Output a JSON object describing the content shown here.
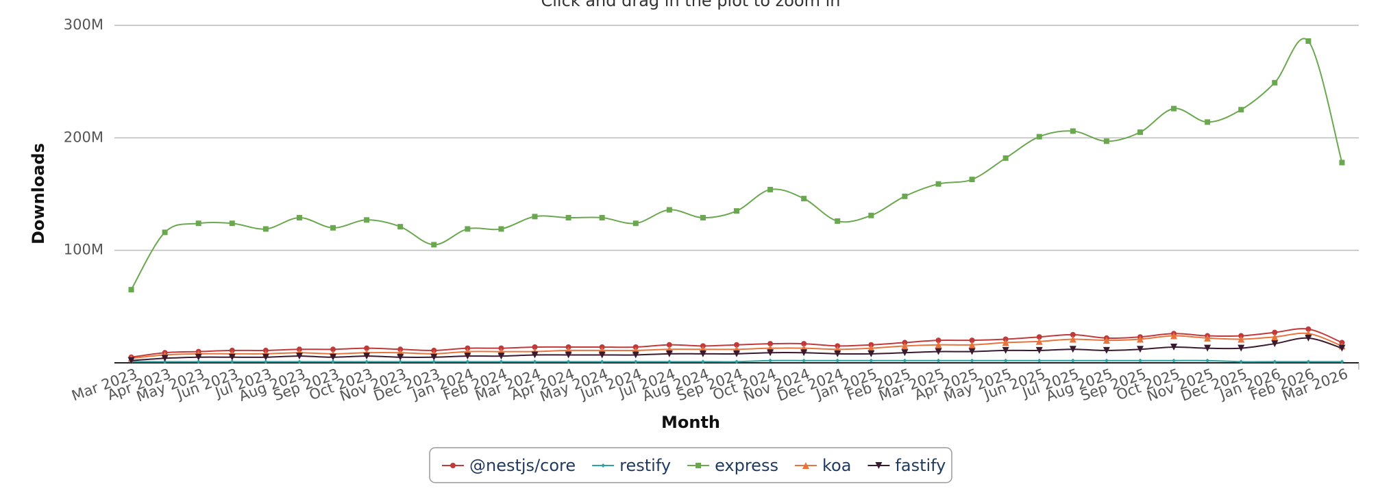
{
  "chart_data": {
    "type": "line",
    "subtitle": "Click and drag in the plot to zoom in",
    "x_label": "Month",
    "y_label": "Downloads",
    "categories": [
      "Mar 2023",
      "Apr 2023",
      "May 2023",
      "Jun 2023",
      "Jul 2023",
      "Aug 2023",
      "Sep 2023",
      "Oct 2023",
      "Nov 2023",
      "Dec 2023",
      "Jan 2024",
      "Feb 2024",
      "Mar 2024",
      "Apr 2024",
      "May 2024",
      "Jun 2024",
      "Jul 2024",
      "Aug 2024",
      "Sep 2024",
      "Oct 2024",
      "Nov 2024",
      "Dec 2024",
      "Jan 2025",
      "Feb 2025",
      "Mar 2025",
      "Apr 2025",
      "May 2025",
      "Jun 2025",
      "Jul 2025",
      "Aug 2025",
      "Sep 2025",
      "Oct 2025",
      "Nov 2025",
      "Dec 2025",
      "Jan 2026",
      "Feb 2026",
      "Mar 2026"
    ],
    "ylim": [
      0,
      300
    ],
    "yticks": [
      {
        "value": 100,
        "label": "100M"
      },
      {
        "value": 200,
        "label": "200M"
      },
      {
        "value": 300,
        "label": "300M"
      }
    ],
    "grid": true,
    "series": [
      {
        "name": "@nestjs/core",
        "color": "#c0393b",
        "marker": "circle",
        "values": [
          5,
          9,
          10,
          11,
          11,
          12,
          12,
          13,
          12,
          11,
          13,
          13,
          14,
          14,
          14,
          14,
          16,
          15,
          16,
          17,
          17,
          15,
          16,
          18,
          20,
          20,
          21,
          23,
          25,
          22,
          23,
          26,
          24,
          24,
          27,
          30,
          18
        ]
      },
      {
        "name": "restify",
        "color": "#2aa3a3",
        "marker": "diamond",
        "values": [
          1,
          1,
          1,
          1,
          1,
          1,
          1,
          1,
          1,
          1,
          1,
          1,
          1,
          1,
          1,
          1,
          1,
          1,
          1,
          2,
          2,
          2,
          2,
          2,
          2,
          2,
          2,
          2,
          2,
          2,
          2,
          2,
          2,
          1,
          1,
          1,
          1
        ]
      },
      {
        "name": "express",
        "color": "#6aa84f",
        "marker": "square",
        "values": [
          65,
          116,
          124,
          124,
          119,
          129,
          120,
          127,
          121,
          105,
          119,
          119,
          130,
          129,
          129,
          124,
          136,
          129,
          135,
          154,
          146,
          126,
          131,
          148,
          159,
          163,
          182,
          201,
          206,
          197,
          205,
          226,
          214,
          225,
          249,
          286,
          178
        ]
      },
      {
        "name": "koa",
        "color": "#e8743b",
        "marker": "triangle",
        "values": [
          4,
          7,
          8,
          8,
          8,
          9,
          8,
          9,
          9,
          8,
          10,
          10,
          10,
          11,
          11,
          11,
          12,
          12,
          12,
          13,
          13,
          12,
          13,
          15,
          16,
          16,
          18,
          19,
          21,
          20,
          21,
          24,
          22,
          21,
          23,
          26,
          15
        ]
      },
      {
        "name": "fastify",
        "color": "#3a1a2e",
        "marker": "triangle-down",
        "values": [
          2,
          4,
          5,
          5,
          5,
          6,
          5,
          6,
          5,
          5,
          6,
          6,
          7,
          7,
          7,
          7,
          8,
          8,
          8,
          9,
          9,
          8,
          8,
          9,
          10,
          10,
          11,
          11,
          12,
          11,
          12,
          14,
          13,
          13,
          17,
          22,
          13
        ]
      }
    ]
  }
}
